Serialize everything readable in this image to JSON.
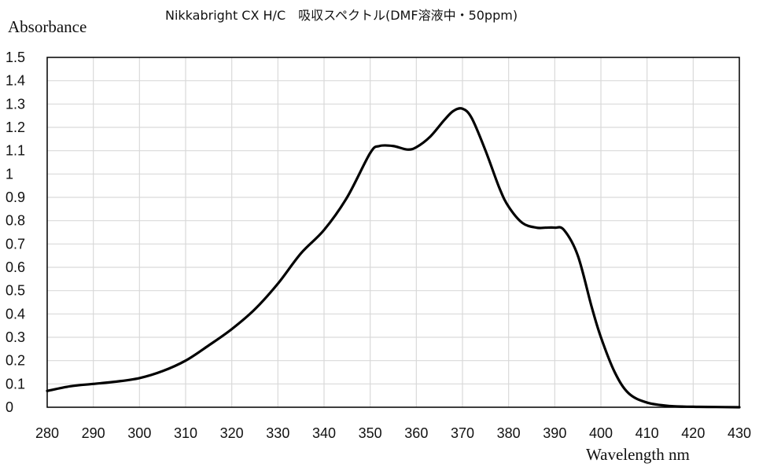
{
  "chart_data": {
    "type": "line",
    "title": "Nikkabright CX H/C　吸収スペクトル(DMF溶液中・50ppm)",
    "xlabel": "Wavelength nm",
    "ylabel": "Absorbance",
    "xlim": [
      280,
      430
    ],
    "ylim": [
      0,
      1.5
    ],
    "xticks": [
      280,
      290,
      300,
      310,
      320,
      330,
      340,
      350,
      360,
      370,
      380,
      390,
      400,
      410,
      420,
      430
    ],
    "xtick_labels": [
      "280",
      "290",
      "300",
      "310",
      "320",
      "330",
      "340",
      "350",
      "360",
      "370",
      "380",
      "390",
      "400",
      "410",
      "420",
      "430"
    ],
    "yticks": [
      0,
      0.1,
      0.2,
      0.3,
      0.4,
      0.5,
      0.6,
      0.7,
      0.8,
      0.9,
      1.0,
      1.1,
      1.2,
      1.3,
      1.4,
      1.5
    ],
    "ytick_labels": [
      "0",
      "0.1",
      "0.2",
      "0.3",
      "0.4",
      "0.5",
      "0.6",
      "0.7",
      "0.8",
      "0.9",
      "1",
      "1.1",
      "1.2",
      "1.3",
      "1.4",
      "1.5"
    ],
    "grid": true,
    "legend": "none",
    "series": [
      {
        "color": "#000000",
        "x": [
          280,
          285,
          290,
          295,
          300,
          305,
          310,
          315,
          320,
          325,
          330,
          335,
          340,
          345,
          350,
          352,
          355,
          358,
          360,
          363,
          366,
          368,
          370,
          372,
          375,
          378,
          380,
          383,
          386,
          388,
          390,
          392,
          395,
          398,
          400,
          403,
          406,
          410,
          415,
          420,
          425,
          430
        ],
        "y": [
          0.07,
          0.09,
          0.1,
          0.11,
          0.125,
          0.155,
          0.2,
          0.265,
          0.335,
          0.42,
          0.53,
          0.66,
          0.76,
          0.9,
          1.09,
          1.12,
          1.12,
          1.105,
          1.115,
          1.16,
          1.23,
          1.27,
          1.28,
          1.24,
          1.1,
          0.94,
          0.86,
          0.79,
          0.77,
          0.77,
          0.77,
          0.76,
          0.65,
          0.43,
          0.3,
          0.15,
          0.06,
          0.02,
          0.005,
          0.002,
          0.001,
          0.0
        ]
      }
    ]
  }
}
